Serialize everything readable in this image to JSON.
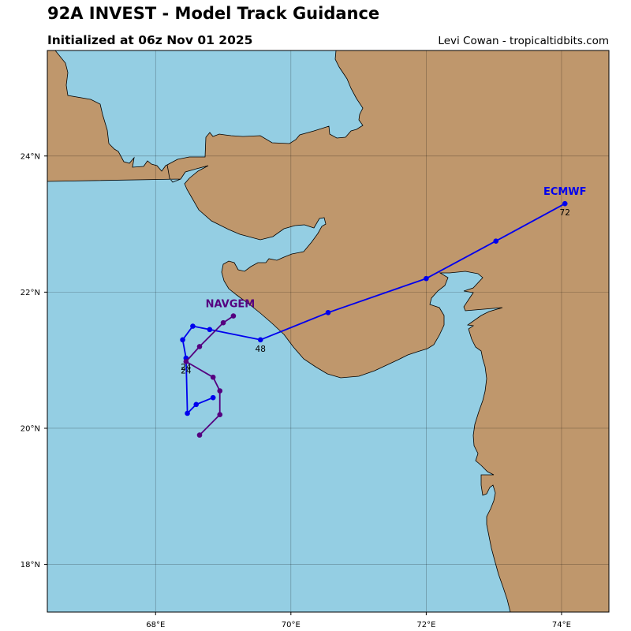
{
  "header": {
    "title": "92A INVEST - Model Track Guidance",
    "subtitle": "Initialized at 06z Nov 01 2025",
    "credit": "Levi Cowan - tropicaltidbits.com"
  },
  "colors": {
    "water": "#94cee3",
    "land": "#bf976c",
    "ecmwf": "#0000ee",
    "navgem": "#550080"
  },
  "map": {
    "lon_range": [
      66.4,
      74.7
    ],
    "lat_range": [
      17.3,
      25.55
    ],
    "x_ticks": [
      {
        "value": 68,
        "label": "68°E"
      },
      {
        "value": 70,
        "label": "70°E"
      },
      {
        "value": 72,
        "label": "72°E"
      },
      {
        "value": 74,
        "label": "74°E"
      }
    ],
    "y_ticks": [
      {
        "value": 18,
        "label": "18°N"
      },
      {
        "value": 20,
        "label": "20°N"
      },
      {
        "value": 22,
        "label": "22°N"
      },
      {
        "value": 24,
        "label": "24°N"
      }
    ],
    "grid": true
  },
  "tracks": [
    {
      "model": "ECMWF",
      "color": "#0000ee",
      "points": [
        {
          "lon": 68.85,
          "lat": 20.45
        },
        {
          "lon": 68.6,
          "lat": 20.35
        },
        {
          "lon": 68.47,
          "lat": 20.22
        },
        {
          "lon": 68.45,
          "lat": 21.03
        },
        {
          "lon": 68.4,
          "lat": 21.3
        },
        {
          "lon": 68.55,
          "lat": 21.5
        },
        {
          "lon": 68.8,
          "lat": 21.45
        },
        {
          "lon": 69.55,
          "lat": 21.3
        },
        {
          "lon": 70.55,
          "lat": 21.7
        },
        {
          "lon": 72.0,
          "lat": 22.2
        },
        {
          "lon": 73.03,
          "lat": 22.75
        },
        {
          "lon": 74.05,
          "lat": 23.3
        }
      ],
      "hour_labels": [
        {
          "text": "24",
          "lon": 68.45,
          "lat": 21.03
        },
        {
          "text": "48",
          "lon": 69.55,
          "lat": 21.3
        },
        {
          "text": "72",
          "lon": 74.05,
          "lat": 23.3
        }
      ]
    },
    {
      "model": "NAVGEM",
      "color": "#550080",
      "points": [
        {
          "lon": 68.65,
          "lat": 19.9
        },
        {
          "lon": 68.95,
          "lat": 20.2
        },
        {
          "lon": 68.95,
          "lat": 20.55
        },
        {
          "lon": 68.85,
          "lat": 20.75
        },
        {
          "lon": 68.45,
          "lat": 20.98
        },
        {
          "lon": 68.65,
          "lat": 21.2
        },
        {
          "lon": 69.0,
          "lat": 21.55
        },
        {
          "lon": 69.15,
          "lat": 21.65
        }
      ],
      "hour_labels": [
        {
          "text": "24",
          "lon": 68.45,
          "lat": 20.98
        }
      ]
    }
  ]
}
